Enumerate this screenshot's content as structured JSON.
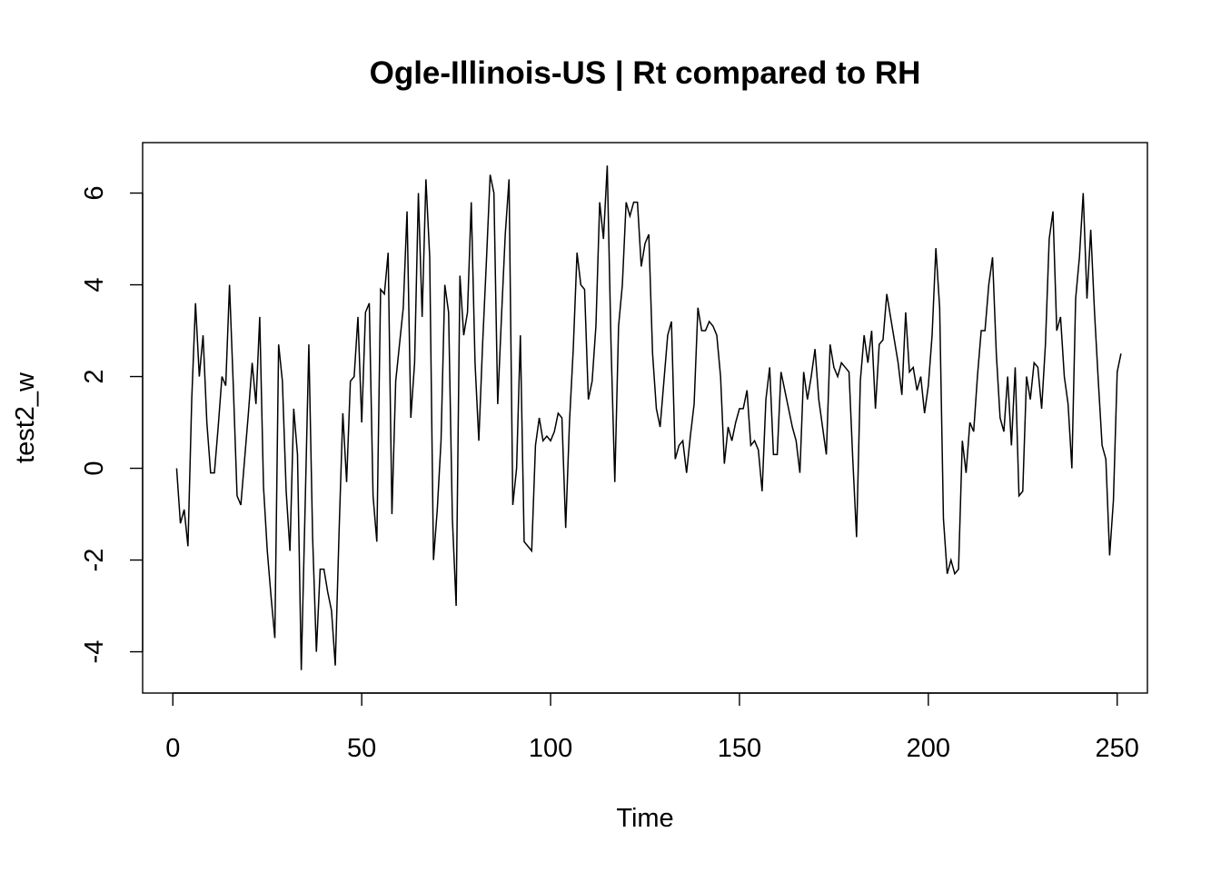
{
  "chart_data": {
    "type": "line",
    "title": "Ogle-Illinois-US | Rt compared to RH",
    "xlabel": "Time",
    "ylabel": "test2_w",
    "xlim": [
      -8,
      258
    ],
    "ylim": [
      -4.9,
      7.1
    ],
    "x_ticks": [
      0,
      50,
      100,
      150,
      200,
      250
    ],
    "y_ticks": [
      -4,
      -2,
      0,
      2,
      4,
      6
    ],
    "x_tick_labels": [
      "0",
      "50",
      "100",
      "150",
      "200",
      "250"
    ],
    "y_tick_labels": [
      "-4",
      "-2",
      "0",
      "2",
      "4",
      "6"
    ],
    "grid": false,
    "legend": "none",
    "line_color": "#000000",
    "series": [
      {
        "x_start": 1,
        "values": [
          0.0,
          -1.2,
          -0.9,
          -1.7,
          1.5,
          3.6,
          2.0,
          2.9,
          1.0,
          -0.1,
          -0.1,
          0.9,
          2.0,
          1.8,
          4.0,
          1.8,
          -0.6,
          -0.8,
          0.2,
          1.2,
          2.3,
          1.4,
          3.3,
          -0.4,
          -1.8,
          -2.8,
          -3.7,
          2.7,
          1.9,
          -0.5,
          -1.8,
          1.3,
          0.3,
          -4.4,
          -0.9,
          2.7,
          -1.5,
          -4.0,
          -2.2,
          -2.2,
          -2.7,
          -3.1,
          -4.3,
          -1.4,
          1.2,
          -0.3,
          1.9,
          2.0,
          3.3,
          1.0,
          3.4,
          3.6,
          -0.6,
          -1.6,
          3.9,
          3.8,
          4.7,
          -1.0,
          1.9,
          2.7,
          3.5,
          5.6,
          1.1,
          2.3,
          6.0,
          3.3,
          6.3,
          4.6,
          -2.0,
          -0.9,
          0.6,
          4.0,
          3.4,
          -1.1,
          -3.0,
          4.2,
          2.9,
          3.4,
          5.8,
          2.3,
          0.6,
          2.7,
          4.5,
          6.4,
          6.0,
          1.4,
          3.3,
          5.1,
          6.3,
          -0.8,
          0.0,
          2.9,
          -1.6,
          -1.7,
          -1.8,
          0.5,
          1.1,
          0.6,
          0.7,
          0.6,
          0.8,
          1.2,
          1.1,
          -1.3,
          1.0,
          2.6,
          4.7,
          4.0,
          3.9,
          1.5,
          1.9,
          3.1,
          5.8,
          5.0,
          6.6,
          2.7,
          -0.3,
          3.1,
          4.0,
          5.8,
          5.5,
          5.8,
          5.8,
          4.4,
          4.9,
          5.1,
          2.5,
          1.3,
          0.9,
          1.9,
          2.9,
          3.2,
          0.2,
          0.5,
          0.6,
          -0.1,
          0.7,
          1.4,
          3.5,
          3.0,
          3.0,
          3.2,
          3.1,
          2.9,
          2.0,
          0.1,
          0.9,
          0.6,
          1.0,
          1.3,
          1.3,
          1.7,
          0.5,
          0.6,
          0.4,
          -0.5,
          1.5,
          2.2,
          0.3,
          0.3,
          2.1,
          1.7,
          1.3,
          0.9,
          0.6,
          -0.1,
          2.1,
          1.5,
          2.0,
          2.6,
          1.5,
          0.9,
          0.3,
          2.7,
          2.2,
          2.0,
          2.3,
          2.2,
          2.1,
          0.2,
          -1.5,
          1.9,
          2.9,
          2.3,
          3.0,
          1.3,
          2.7,
          2.8,
          3.8,
          3.3,
          2.8,
          2.3,
          1.6,
          3.4,
          2.1,
          2.2,
          1.7,
          2.0,
          1.2,
          1.8,
          2.9,
          4.8,
          3.5,
          -1.1,
          -2.3,
          -2.0,
          -2.3,
          -2.2,
          0.6,
          -0.1,
          1.0,
          0.8,
          2.0,
          3.0,
          3.0,
          4.0,
          4.6,
          2.5,
          1.1,
          0.8,
          2.0,
          0.5,
          2.2,
          -0.6,
          -0.5,
          2.0,
          1.5,
          2.3,
          2.2,
          1.3,
          2.7,
          5.0,
          5.6,
          3.0,
          3.3,
          2.0,
          1.4,
          0.0,
          3.7,
          4.6,
          6.0,
          3.7,
          5.2,
          3.4,
          1.9,
          0.5,
          0.2,
          -1.9,
          -0.7,
          2.1,
          2.5
        ]
      }
    ]
  }
}
